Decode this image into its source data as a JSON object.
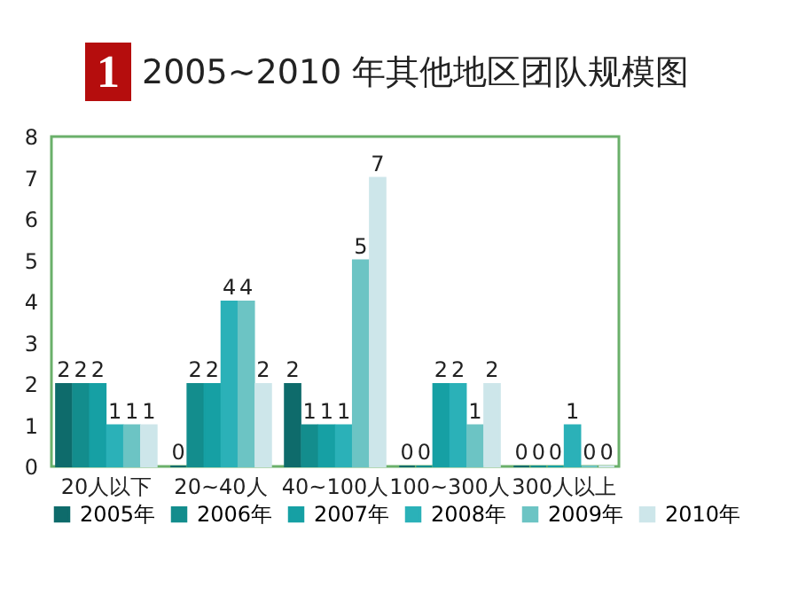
{
  "chart_data": {
    "type": "bar",
    "title": "2005~2010 年其他地区团队规模图",
    "annotations": [
      "1"
    ],
    "categories": [
      "20人以下",
      "20~40人",
      "40~100人",
      "100~300人",
      "300人以上"
    ],
    "series": [
      {
        "name": "2005年",
        "color": "#0e6b6b",
        "values": [
          2,
          0,
          2,
          0,
          0
        ]
      },
      {
        "name": "2006年",
        "color": "#138d8d",
        "values": [
          2,
          2,
          1,
          0,
          0
        ]
      },
      {
        "name": "2007年",
        "color": "#16a0a4",
        "values": [
          2,
          2,
          1,
          2,
          0
        ]
      },
      {
        "name": "2008年",
        "color": "#2bb1b8",
        "values": [
          1,
          4,
          1,
          2,
          1
        ]
      },
      {
        "name": "2009年",
        "color": "#6cc4c4",
        "values": [
          1,
          4,
          5,
          1,
          0
        ]
      },
      {
        "name": "2010年",
        "color": "#cde6ea",
        "values": [
          1,
          2,
          7,
          2,
          0
        ]
      }
    ],
    "ylim": [
      0,
      8
    ],
    "yticks": [
      0,
      1,
      2,
      3,
      4,
      5,
      6,
      7,
      8
    ],
    "grid": false,
    "legend": "bottom",
    "data_labels": true
  }
}
